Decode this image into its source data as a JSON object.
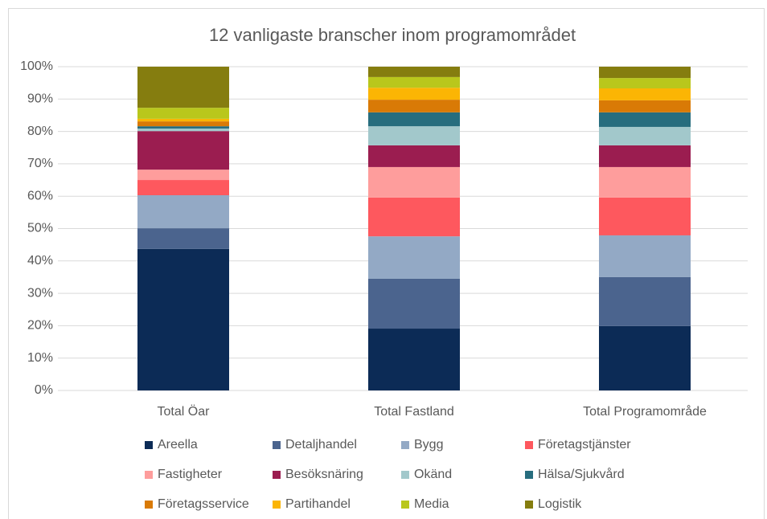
{
  "chart_data": {
    "type": "stacked_bar",
    "title": "12 vanligaste branscher inom programområdet",
    "categories": [
      "Total Öar",
      "Total Fastland",
      "Total Programområde"
    ],
    "series": [
      {
        "name": "Areella",
        "color": "#0c2b56",
        "values": [
          43.7,
          19.1,
          19.9
        ]
      },
      {
        "name": "Detaljhandel",
        "color": "#4b648e",
        "values": [
          6.4,
          15.4,
          15.1
        ]
      },
      {
        "name": "Bygg",
        "color": "#93a9c5",
        "values": [
          10.2,
          13.1,
          12.9
        ]
      },
      {
        "name": "Företagstjänster",
        "color": "#fe585e",
        "values": [
          4.7,
          12.0,
          11.7
        ]
      },
      {
        "name": "Fastigheter",
        "color": "#fe9d9c",
        "values": [
          3.2,
          9.4,
          9.4
        ]
      },
      {
        "name": "Besöksnäring",
        "color": "#9b1d50",
        "values": [
          11.9,
          6.7,
          6.7
        ]
      },
      {
        "name": "Okänd",
        "color": "#a2c8cb",
        "values": [
          0.8,
          5.9,
          5.7
        ]
      },
      {
        "name": "Hälsa/Sjukvård",
        "color": "#276d7e",
        "values": [
          0.7,
          4.3,
          4.5
        ]
      },
      {
        "name": "Företagsservice",
        "color": "#d97a06",
        "values": [
          1.5,
          3.9,
          3.7
        ]
      },
      {
        "name": "Partihandel",
        "color": "#fbb504",
        "values": [
          0.8,
          3.7,
          3.7
        ]
      },
      {
        "name": "Media",
        "color": "#b9c71c",
        "values": [
          3.4,
          3.3,
          3.2
        ]
      },
      {
        "name": "Logistik",
        "color": "#857d0f",
        "values": [
          12.7,
          3.2,
          3.5
        ]
      }
    ],
    "ylim": [
      0,
      100
    ],
    "yticks": [
      {
        "value": 0,
        "label": "0%"
      },
      {
        "value": 10,
        "label": "10%"
      },
      {
        "value": 20,
        "label": "20%"
      },
      {
        "value": 30,
        "label": "30%"
      },
      {
        "value": 40,
        "label": "40%"
      },
      {
        "value": 50,
        "label": "50%"
      },
      {
        "value": 60,
        "label": "60%"
      },
      {
        "value": 70,
        "label": "70%"
      },
      {
        "value": 80,
        "label": "80%"
      },
      {
        "value": 90,
        "label": "90%"
      },
      {
        "value": 100,
        "label": "100%"
      }
    ],
    "grid": true,
    "legend": "bottom"
  }
}
